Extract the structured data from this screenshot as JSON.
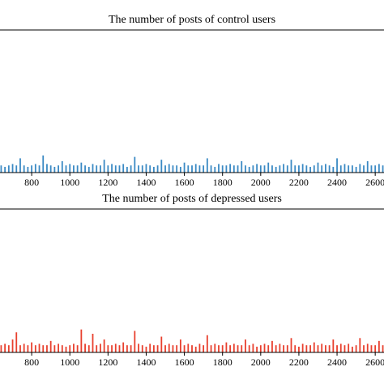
{
  "chart_data": [
    {
      "type": "bar",
      "title": "The number of posts of control users",
      "color": "#3b8ac4",
      "x": [
        640,
        660,
        680,
        700,
        720,
        740,
        760,
        780,
        800,
        820,
        840,
        860,
        880,
        900,
        920,
        940,
        960,
        980,
        1000,
        1020,
        1040,
        1060,
        1080,
        1100,
        1120,
        1140,
        1160,
        1180,
        1200,
        1220,
        1240,
        1260,
        1280,
        1300,
        1320,
        1340,
        1360,
        1380,
        1400,
        1420,
        1440,
        1460,
        1480,
        1500,
        1520,
        1540,
        1560,
        1580,
        1600,
        1620,
        1640,
        1660,
        1680,
        1700,
        1720,
        1740,
        1760,
        1780,
        1800,
        1820,
        1840,
        1860,
        1880,
        1900,
        1920,
        1940,
        1960,
        1980,
        2000,
        2020,
        2040,
        2060,
        2080,
        2100,
        2120,
        2140,
        2160,
        2180,
        2200,
        2220,
        2240,
        2260,
        2280,
        2300,
        2320,
        2340,
        2360,
        2380,
        2400,
        2420,
        2440,
        2460,
        2480,
        2500,
        2520,
        2540,
        2560,
        2580,
        2600,
        2620,
        2640
      ],
      "values": [
        5,
        4,
        5,
        6,
        5,
        10,
        5,
        4,
        5,
        6,
        5,
        12,
        6,
        5,
        4,
        5,
        8,
        5,
        6,
        5,
        5,
        7,
        5,
        4,
        6,
        5,
        5,
        9,
        5,
        6,
        5,
        5,
        6,
        4,
        5,
        11,
        5,
        5,
        6,
        5,
        4,
        5,
        9,
        5,
        6,
        5,
        5,
        4,
        7,
        5,
        5,
        6,
        5,
        5,
        10,
        5,
        4,
        6,
        5,
        5,
        6,
        5,
        5,
        8,
        5,
        4,
        5,
        6,
        5,
        5,
        7,
        5,
        4,
        5,
        6,
        5,
        9,
        5,
        5,
        6,
        5,
        4,
        5,
        7,
        5,
        6,
        5,
        4,
        10,
        5,
        6,
        5,
        5,
        4,
        6,
        5,
        8,
        5,
        5,
        6,
        5
      ],
      "xlim": [
        634,
        2646
      ],
      "xticks": [
        800,
        1000,
        1200,
        1400,
        1600,
        1800,
        2000,
        2200,
        2400,
        2600
      ],
      "ylim": [
        0,
        100
      ]
    },
    {
      "type": "bar",
      "title": "The number of posts of depressed users",
      "color": "#e8402e",
      "x": [
        640,
        660,
        680,
        700,
        720,
        740,
        760,
        780,
        800,
        820,
        840,
        860,
        880,
        900,
        920,
        940,
        960,
        980,
        1000,
        1020,
        1040,
        1060,
        1080,
        1100,
        1120,
        1140,
        1160,
        1180,
        1200,
        1220,
        1240,
        1260,
        1280,
        1300,
        1320,
        1340,
        1360,
        1380,
        1400,
        1420,
        1440,
        1460,
        1480,
        1500,
        1520,
        1540,
        1560,
        1580,
        1600,
        1620,
        1640,
        1660,
        1680,
        1700,
        1720,
        1740,
        1760,
        1780,
        1800,
        1820,
        1840,
        1860,
        1880,
        1900,
        1920,
        1940,
        1960,
        1980,
        2000,
        2020,
        2040,
        2060,
        2080,
        2100,
        2120,
        2140,
        2160,
        2180,
        2200,
        2220,
        2240,
        2260,
        2280,
        2300,
        2320,
        2340,
        2360,
        2380,
        2400,
        2420,
        2440,
        2460,
        2480,
        2500,
        2520,
        2540,
        2560,
        2580,
        2600,
        2620,
        2640
      ],
      "values": [
        5,
        6,
        5,
        9,
        14,
        5,
        6,
        5,
        7,
        5,
        6,
        5,
        5,
        8,
        5,
        6,
        5,
        4,
        5,
        6,
        5,
        16,
        6,
        5,
        13,
        5,
        6,
        9,
        5,
        5,
        6,
        5,
        7,
        5,
        5,
        15,
        6,
        5,
        4,
        6,
        5,
        5,
        11,
        5,
        6,
        5,
        5,
        9,
        5,
        6,
        5,
        4,
        6,
        5,
        12,
        5,
        6,
        5,
        5,
        7,
        5,
        6,
        5,
        5,
        9,
        5,
        6,
        4,
        5,
        6,
        5,
        8,
        5,
        6,
        5,
        5,
        10,
        5,
        4,
        6,
        5,
        5,
        7,
        5,
        6,
        5,
        5,
        9,
        5,
        6,
        5,
        6,
        4,
        5,
        10,
        5,
        6,
        5,
        5,
        8,
        5
      ],
      "xlim": [
        634,
        2646
      ],
      "xticks": [
        800,
        1000,
        1200,
        1400,
        1600,
        1800,
        2000,
        2200,
        2400,
        2600
      ],
      "ylim": [
        0,
        100
      ]
    }
  ]
}
